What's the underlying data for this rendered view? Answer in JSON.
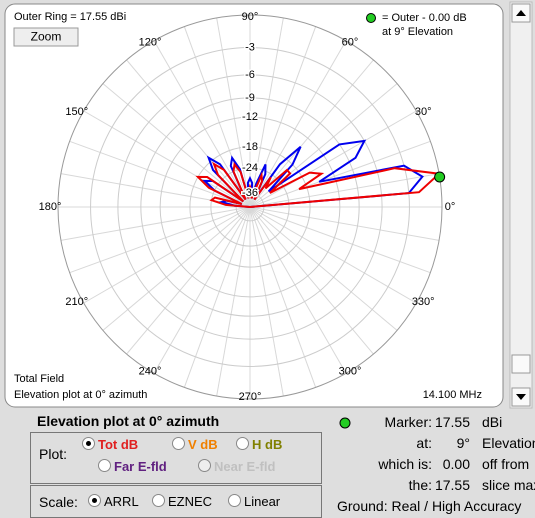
{
  "chart_data": {
    "type": "polar",
    "title": "Outer Ring = 17.55 dBi",
    "x": [
      0,
      5,
      10,
      15,
      20,
      25,
      30,
      35,
      40,
      45,
      50,
      55,
      60,
      65,
      70,
      75,
      80,
      85,
      90,
      95,
      100,
      105,
      110,
      115,
      120,
      125,
      130,
      135,
      140,
      145,
      150,
      155,
      160,
      165,
      170,
      175,
      180
    ],
    "series": [
      {
        "color": "#0000ee",
        "values": [
          -50,
          -3,
          -1.5,
          -3,
          -15,
          -8,
          -6,
          -9,
          -30,
          -18,
          -14,
          -20,
          -40,
          -25,
          -22,
          -30,
          -40,
          -30,
          -28,
          -30,
          -40,
          -24,
          -20,
          -22,
          -40,
          -20,
          -17,
          -20,
          -40,
          -22,
          -20,
          -24,
          -40,
          -30,
          -28,
          -35,
          -50
        ]
      },
      {
        "color": "#ee0000",
        "values": [
          -50,
          -2,
          0,
          -4,
          -20,
          -14,
          -16,
          -30,
          -20,
          -20,
          -30,
          -25,
          -40,
          -28,
          -26,
          -35,
          -40,
          -34,
          -32,
          -35,
          -40,
          -25,
          -22,
          -24,
          -40,
          -22,
          -19,
          -22,
          -40,
          -20,
          -18,
          -22,
          -40,
          -25,
          -24,
          -30,
          -50
        ]
      }
    ],
    "xticks": [
      {
        "value": 0,
        "label": "0°"
      },
      {
        "value": 30,
        "label": "30°"
      },
      {
        "value": 60,
        "label": "60°"
      },
      {
        "value": 90,
        "label": "90°"
      },
      {
        "value": 120,
        "label": "120°"
      },
      {
        "value": 150,
        "label": "150°"
      },
      {
        "value": 180,
        "label": "180°"
      },
      {
        "value": 210,
        "label": "210°"
      },
      {
        "value": 240,
        "label": "240°"
      },
      {
        "value": 270,
        "label": "270°"
      },
      {
        "value": 300,
        "label": "300°"
      },
      {
        "value": 330,
        "label": "330°"
      }
    ],
    "ylim": [
      -50,
      0
    ],
    "yticks": [
      -3,
      -6,
      -9,
      -12,
      -18,
      -24,
      -36
    ],
    "marker": {
      "x": 9,
      "value": 0,
      "color": "#22cc22"
    },
    "legend": [
      "= Outer - 0.00 dB",
      "at 9° Elevation"
    ],
    "notes": [
      "Total Field",
      "Elevation plot at 0° azimuth"
    ],
    "frequency": "14.100 MHz",
    "zoom_button": "Zoom"
  },
  "panel": {
    "title": "Elevation plot at 0° azimuth",
    "plot_label": "Plot:",
    "plot_options": [
      "Tot dB",
      "V dB",
      "H dB",
      "Far E-fld",
      "Near E-fld"
    ],
    "scale_label": "Scale:",
    "scale_options": [
      "ARRL",
      "EZNEC",
      "Linear"
    ],
    "marker_rows": [
      [
        "Marker:",
        "17.55",
        "dBi"
      ],
      [
        "at:",
        "9°",
        "Elevation"
      ],
      [
        "which is:",
        "0.00",
        "off from"
      ],
      [
        "the:",
        "17.55",
        "slice max"
      ]
    ],
    "ground": [
      "Ground:",
      "Real / High Accuracy"
    ]
  }
}
